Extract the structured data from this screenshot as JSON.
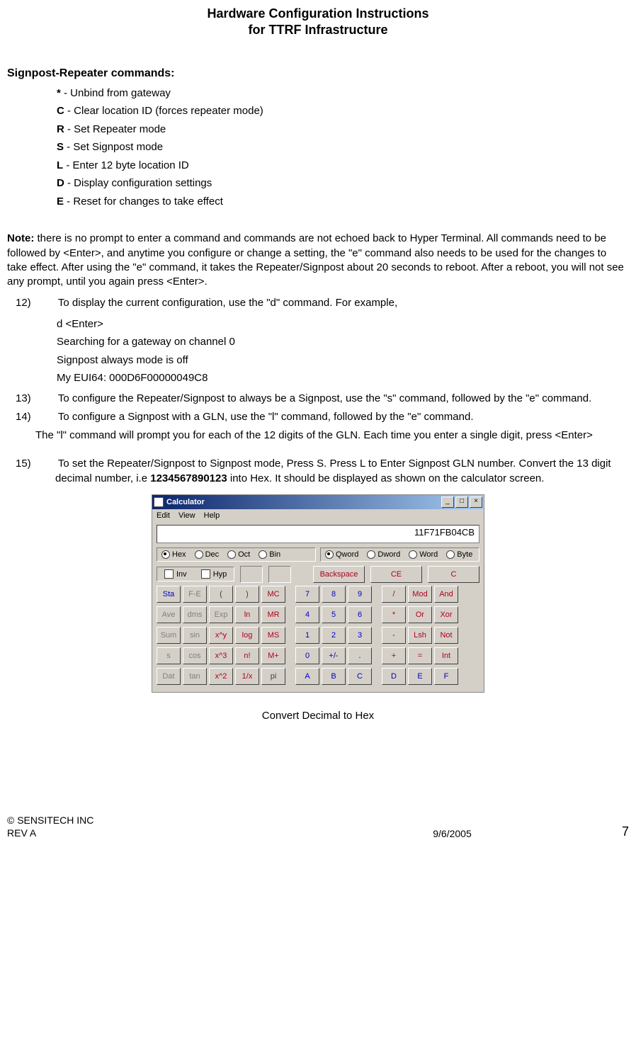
{
  "doc": {
    "title_l1": "Hardware Configuration Instructions",
    "title_l2": "for TTRF Infrastructure",
    "section_heading": "Signpost-Repeater commands:",
    "commands": [
      {
        "key": "*",
        "desc": " - Unbind from gateway"
      },
      {
        "key": "C",
        "desc": " - Clear location ID (forces repeater mode)"
      },
      {
        "key": "R",
        "desc": " - Set Repeater mode"
      },
      {
        "key": "S",
        "desc": " - Set Signpost mode"
      },
      {
        "key": "L",
        "desc": " - Enter 12 byte location ID"
      },
      {
        "key": "D",
        "desc": " - Display configuration settings"
      },
      {
        "key": "E",
        "desc": " - Reset for changes to take effect"
      }
    ],
    "note_label": "Note:",
    "note_text": "  there is no prompt to enter a command and commands are not echoed back to Hyper Terminal.  All commands need to be followed by <Enter>, and anytime you configure or change a setting, the \"e\" command also needs to be used for the changes to take effect. After using the \"e\" command, it takes the Repeater/Signpost about 20 seconds to reboot. After a reboot, you will not see any prompt, until you again press <Enter>.",
    "item12_num": "12)",
    "item12_text": " To display the current configuration, use the \"d\" command.  For example,",
    "example_lines": [
      "d  <Enter>",
      "Searching for a gateway on channel 0",
      "Signpost always mode is off",
      "My EUI64: 000D6F00000049C8"
    ],
    "item13_num": "13)",
    "item13_text": " To configure the Repeater/Signpost to always be a Signpost, use the \"s\" command, followed by the \"e\" command.",
    "item14_num": "14)",
    "item14_text": " To configure a Signpost with a GLN, use the \"l\" command, followed by the \"e\" command.",
    "l_cmd_text": "The \"l\" command will prompt you for each of the 12 digits of the GLN.  Each time you enter a single digit, press <Enter>",
    "item15_num": "15)",
    "item15_pre": " To set the Repeater/Signpost to Signpost mode, Press S. Press L to Enter Signpost GLN number. Convert the 13 digit decimal number, i.e ",
    "item15_bold": "1234567890123",
    "item15_post": " into Hex. It should be displayed as shown on the calculator screen.",
    "caption": "Convert Decimal to Hex"
  },
  "calc": {
    "title": "Calculator",
    "menu": [
      "Edit",
      "View",
      "Help"
    ],
    "display_value": "11F71FB04CB",
    "base_radios": [
      {
        "label": "Hex",
        "sel": true
      },
      {
        "label": "Dec",
        "sel": false
      },
      {
        "label": "Oct",
        "sel": false
      },
      {
        "label": "Bin",
        "sel": false
      }
    ],
    "size_radios": [
      {
        "label": "Qword",
        "sel": true
      },
      {
        "label": "Dword",
        "sel": false
      },
      {
        "label": "Word",
        "sel": false
      },
      {
        "label": "Byte",
        "sel": false
      }
    ],
    "inv": "Inv",
    "hyp": "Hyp",
    "top_btns": {
      "backspace": "Backspace",
      "ce": "CE",
      "c": "C"
    },
    "grid_rows": [
      [
        {
          "t": "Sta",
          "c": "blue"
        },
        {
          "t": "F-E",
          "c": "dis"
        },
        {
          "t": "(",
          "c": "dark"
        },
        {
          "t": ")",
          "c": "dark"
        },
        {
          "t": "MC",
          "c": "red"
        },
        {
          "t": "7",
          "c": "blue"
        },
        {
          "t": "8",
          "c": "blue"
        },
        {
          "t": "9",
          "c": "blue"
        },
        {
          "t": "/",
          "c": "red"
        },
        {
          "t": "Mod",
          "c": "red"
        },
        {
          "t": "And",
          "c": "red"
        }
      ],
      [
        {
          "t": "Ave",
          "c": "dis"
        },
        {
          "t": "dms",
          "c": "dis"
        },
        {
          "t": "Exp",
          "c": "dis"
        },
        {
          "t": "ln",
          "c": "red"
        },
        {
          "t": "MR",
          "c": "red"
        },
        {
          "t": "4",
          "c": "blue"
        },
        {
          "t": "5",
          "c": "blue"
        },
        {
          "t": "6",
          "c": "blue"
        },
        {
          "t": "*",
          "c": "red"
        },
        {
          "t": "Or",
          "c": "red"
        },
        {
          "t": "Xor",
          "c": "red"
        }
      ],
      [
        {
          "t": "Sum",
          "c": "dis"
        },
        {
          "t": "sin",
          "c": "dis"
        },
        {
          "t": "x^y",
          "c": "red"
        },
        {
          "t": "log",
          "c": "red"
        },
        {
          "t": "MS",
          "c": "red"
        },
        {
          "t": "1",
          "c": "blue"
        },
        {
          "t": "2",
          "c": "blue"
        },
        {
          "t": "3",
          "c": "blue"
        },
        {
          "t": "-",
          "c": "red"
        },
        {
          "t": "Lsh",
          "c": "red"
        },
        {
          "t": "Not",
          "c": "red"
        }
      ],
      [
        {
          "t": "s",
          "c": "dis"
        },
        {
          "t": "cos",
          "c": "dis"
        },
        {
          "t": "x^3",
          "c": "red"
        },
        {
          "t": "n!",
          "c": "red"
        },
        {
          "t": "M+",
          "c": "red"
        },
        {
          "t": "0",
          "c": "blue"
        },
        {
          "t": "+/-",
          "c": "blue"
        },
        {
          "t": ".",
          "c": "blue"
        },
        {
          "t": "+",
          "c": "red"
        },
        {
          "t": "=",
          "c": "red"
        },
        {
          "t": "Int",
          "c": "red"
        }
      ],
      [
        {
          "t": "Dat",
          "c": "dis"
        },
        {
          "t": "tan",
          "c": "dis"
        },
        {
          "t": "x^2",
          "c": "red"
        },
        {
          "t": "1/x",
          "c": "red"
        },
        {
          "t": "pi",
          "c": "dark"
        },
        {
          "t": "A",
          "c": "blue"
        },
        {
          "t": "B",
          "c": "blue"
        },
        {
          "t": "C",
          "c": "blue"
        },
        {
          "t": "D",
          "c": "blue"
        },
        {
          "t": "E",
          "c": "blue"
        },
        {
          "t": "F",
          "c": "blue"
        }
      ]
    ]
  },
  "footer": {
    "copyright": "© SENSITECH INC",
    "rev": "REV A",
    "date": "9/6/2005",
    "page": "7"
  }
}
